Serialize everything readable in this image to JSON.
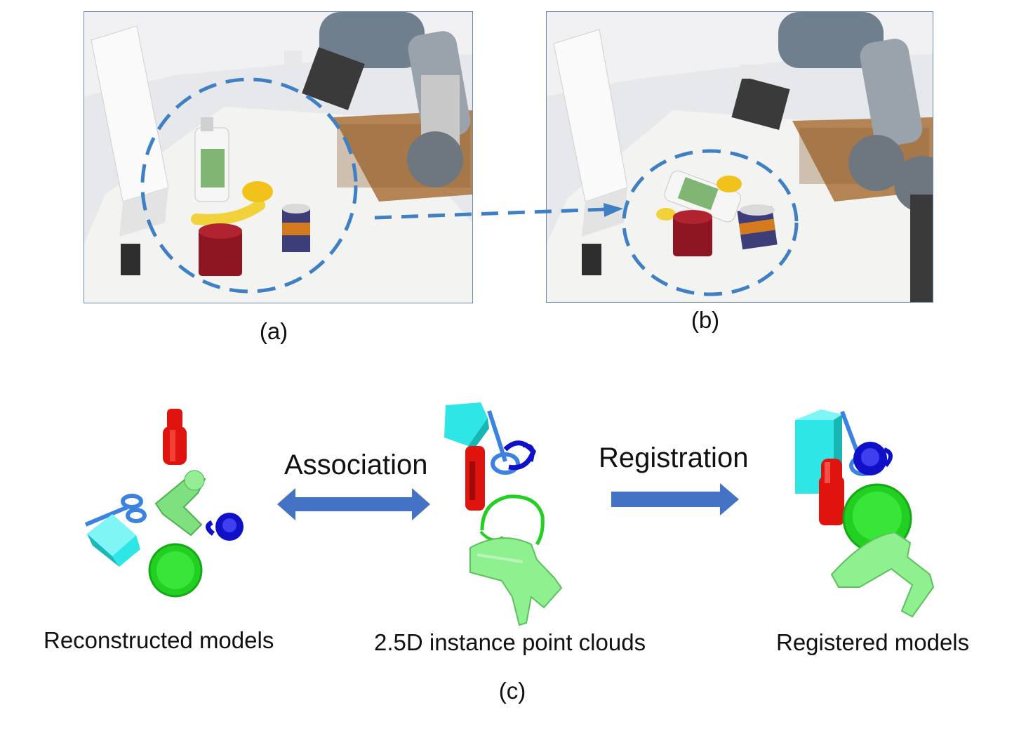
{
  "panels": {
    "a": {
      "caption": "(a)"
    },
    "b": {
      "caption": "(b)"
    },
    "c": {
      "caption": "(c)"
    }
  },
  "pipeline": {
    "reconstructed_label": "Reconstructed models",
    "instance_label": "2.5D instance point clouds",
    "registered_label": "Registered models",
    "association_label": "Association",
    "registration_label": "Registration"
  },
  "colors": {
    "dashed_circle": "#3f7fc4",
    "arrow": "#4472c4",
    "bottle": "#e0140f",
    "drill": "#7fe07f",
    "bowl": "#22d022",
    "cube": "#2ee6e6",
    "mug": "#1010c8",
    "scissors": "#3c82e0"
  }
}
